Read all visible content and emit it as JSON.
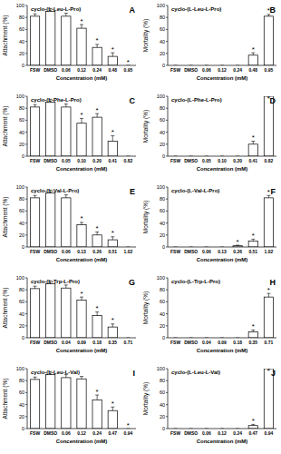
{
  "chart_data": [
    {
      "type": "bar",
      "label": "A",
      "title": "cyclo-(L-Leu-L-Pro)",
      "x_label": "Concentration (mM)",
      "y_label": "Attachment (%)",
      "categories": [
        "FSW",
        "DMSO",
        "0.06",
        "0.12",
        "0.24",
        "0.48",
        "0.95"
      ],
      "values": [
        82,
        90,
        82,
        62,
        30,
        15,
        0
      ],
      "errors": [
        4,
        5,
        5,
        6,
        5,
        6,
        0
      ],
      "annotations": [
        null,
        null,
        null,
        "*",
        "*",
        "*",
        "*"
      ],
      "color": "#ffffff",
      "ylim": [
        0,
        100
      ],
      "yticks": [
        0,
        20,
        40,
        60,
        80,
        100
      ]
    },
    {
      "type": "bar",
      "label": "B",
      "title": "cyclo-(L-Leu-L-Pro)",
      "x_label": "Concentration (mM)",
      "y_label": "Mortality (%)",
      "categories": [
        "FSW",
        "DMSO",
        "0.06",
        "0.12",
        "0.24",
        "0.48",
        "0.95"
      ],
      "values": [
        0,
        0,
        0,
        0,
        0,
        17,
        82
      ],
      "errors": [
        0,
        0,
        0,
        0,
        0,
        4,
        3
      ],
      "annotations": [
        null,
        null,
        null,
        null,
        null,
        "*",
        "*"
      ],
      "color": "#ffffff",
      "ylim": [
        0,
        100
      ],
      "yticks": [
        0,
        20,
        40,
        60,
        80,
        100
      ]
    },
    {
      "type": "bar",
      "label": "C",
      "title": "cyclo-(L-Phe-L-Pro)",
      "x_label": "Concentration (mM)",
      "y_label": "Attachment (%)",
      "categories": [
        "FSW",
        "DMSO",
        "0.05",
        "0.10",
        "0.20",
        "0.41",
        "0.82"
      ],
      "values": [
        82,
        90,
        82,
        55,
        65,
        25,
        0
      ],
      "errors": [
        4,
        5,
        5,
        8,
        6,
        9,
        0
      ],
      "annotations": [
        null,
        null,
        null,
        "*",
        "*",
        "*",
        null
      ],
      "color": "#ffffff",
      "ylim": [
        0,
        100
      ],
      "yticks": [
        0,
        20,
        40,
        60,
        80,
        100
      ]
    },
    {
      "type": "bar",
      "label": "D",
      "title": "cyclo-(L-Phe-L-Pro)",
      "x_label": "Concentration (mM)",
      "y_label": "Mortality (%)",
      "categories": [
        "FSW",
        "DMSO",
        "0.05",
        "0.10",
        "0.20",
        "0.41",
        "0.82"
      ],
      "values": [
        0,
        0,
        0,
        0,
        0,
        20,
        100
      ],
      "errors": [
        0,
        0,
        0,
        0,
        0,
        5,
        0
      ],
      "annotations": [
        null,
        null,
        null,
        null,
        null,
        "*",
        "*"
      ],
      "color": "#ffffff",
      "ylim": [
        0,
        100
      ],
      "yticks": [
        0,
        20,
        40,
        60,
        80,
        100
      ]
    },
    {
      "type": "bar",
      "label": "E",
      "title": "cyclo-(L-Val-L-Pro)",
      "x_label": "Concentration (mM)",
      "y_label": "Attachment (%)",
      "categories": [
        "FSW",
        "DMSO",
        "0.06",
        "0.13",
        "0.26",
        "0.51",
        "1.02"
      ],
      "values": [
        82,
        90,
        82,
        37,
        20,
        12,
        0
      ],
      "errors": [
        4,
        5,
        5,
        4,
        5,
        5,
        0
      ],
      "annotations": [
        null,
        null,
        null,
        "*",
        "*",
        "*",
        null
      ],
      "color": "#ffffff",
      "ylim": [
        0,
        100
      ],
      "yticks": [
        0,
        20,
        40,
        60,
        80,
        100
      ]
    },
    {
      "type": "bar",
      "label": "F",
      "title": "cyclo-(L-Val-L-Pro)",
      "x_label": "Concentration (mM)",
      "y_label": "Mortality (%)",
      "categories": [
        "FSW",
        "DMSO",
        "0.06",
        "0.13",
        "0.26",
        "0.51",
        "1.02"
      ],
      "values": [
        0,
        0,
        0,
        0,
        2,
        10,
        82
      ],
      "errors": [
        0,
        0,
        0,
        0,
        1,
        3,
        4
      ],
      "annotations": [
        null,
        null,
        null,
        null,
        "*",
        "*",
        "*"
      ],
      "color": "#ffffff",
      "ylim": [
        0,
        100
      ],
      "yticks": [
        0,
        20,
        40,
        60,
        80,
        100
      ]
    },
    {
      "type": "bar",
      "label": "G",
      "title": "cyclo-(L-Trp-L-Pro)",
      "x_label": "Concentration (mM)",
      "y_label": "Attachment (%)",
      "categories": [
        "FSW",
        "DMSO",
        "0.04",
        "0.09",
        "0.18",
        "0.35",
        "0.71"
      ],
      "values": [
        82,
        90,
        83,
        63,
        37,
        18,
        0
      ],
      "errors": [
        4,
        5,
        5,
        5,
        6,
        5,
        0
      ],
      "annotations": [
        null,
        null,
        null,
        "*",
        "*",
        "*",
        null
      ],
      "color": "#ffffff",
      "ylim": [
        0,
        100
      ],
      "yticks": [
        0,
        20,
        40,
        60,
        80,
        100
      ]
    },
    {
      "type": "bar",
      "label": "H",
      "title": "cyclo-(L-Trp-L-Pro)",
      "x_label": "Concentration (mM)",
      "y_label": "Mortality (%)",
      "categories": [
        "FSW",
        "DMSO",
        "0.04",
        "0.09",
        "0.18",
        "0.35",
        "0.71"
      ],
      "values": [
        0,
        0,
        0,
        0,
        0,
        10,
        68
      ],
      "errors": [
        0,
        0,
        0,
        0,
        0,
        3,
        6
      ],
      "annotations": [
        null,
        null,
        null,
        null,
        null,
        "*",
        "*"
      ],
      "color": "#ffffff",
      "ylim": [
        0,
        100
      ],
      "yticks": [
        0,
        20,
        40,
        60,
        80,
        100
      ]
    },
    {
      "type": "bar",
      "label": "I",
      "title": "cyclo-(L-Leu-L-Val)",
      "x_label": "Concentration (mM)",
      "y_label": "Attachment (%)",
      "categories": [
        "FSW",
        "DMSO",
        "0.06",
        "0.12",
        "0.24",
        "0.47",
        "0.94"
      ],
      "values": [
        82,
        90,
        85,
        83,
        48,
        30,
        0
      ],
      "errors": [
        4,
        5,
        5,
        4,
        8,
        6,
        0
      ],
      "annotations": [
        null,
        null,
        null,
        null,
        "*",
        "*",
        "*"
      ],
      "color": "#ffffff",
      "ylim": [
        0,
        100
      ],
      "yticks": [
        0,
        20,
        40,
        60,
        80,
        100
      ]
    },
    {
      "type": "bar",
      "label": "J",
      "title": "cyclo-(L-Leu-L-Val)",
      "x_label": "Concentration (mM)",
      "y_label": "Mortality (%)",
      "categories": [
        "FSW",
        "DMSO",
        "0.06",
        "0.12",
        "0.24",
        "0.47",
        "0.94"
      ],
      "values": [
        0,
        0,
        0,
        0,
        0,
        5,
        100
      ],
      "errors": [
        0,
        0,
        0,
        0,
        0,
        2,
        0
      ],
      "annotations": [
        null,
        null,
        null,
        null,
        null,
        "*",
        "*"
      ],
      "color": "#ffffff",
      "ylim": [
        0,
        100
      ],
      "yticks": [
        0,
        20,
        40,
        60,
        80,
        100
      ]
    }
  ]
}
